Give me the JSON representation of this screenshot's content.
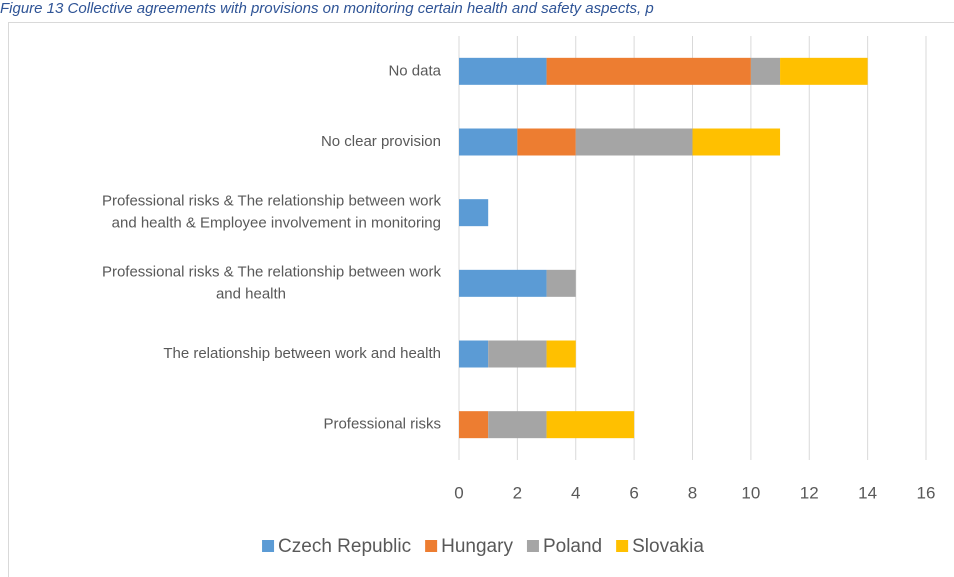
{
  "chart_data": {
    "type": "stacked_bar_horizontal",
    "title": "Figure 13 Collective agreements with provisions on monitoring certain health and safety aspects, p",
    "categories": [
      "No data",
      "No clear provision",
      "Professional risks & The relationship between work and health & Employee involvement in monitoring",
      "Professional risks & The relationship between work and health",
      "The relationship between work and health",
      "Professional risks"
    ],
    "series": [
      {
        "name": "Czech Republic",
        "color": "#5b9bd5",
        "values": [
          3,
          2,
          1,
          3,
          1,
          0
        ]
      },
      {
        "name": "Hungary",
        "color": "#ed7d31",
        "values": [
          7,
          2,
          0,
          0,
          0,
          1
        ]
      },
      {
        "name": "Poland",
        "color": "#a5a5a5",
        "values": [
          1,
          4,
          0,
          1,
          2,
          2
        ]
      },
      {
        "name": "Slovakia",
        "color": "#ffc000",
        "values": [
          3,
          3,
          0,
          0,
          1,
          3
        ]
      }
    ],
    "xlim": [
      0,
      16
    ],
    "xticks": [
      0,
      2,
      4,
      6,
      8,
      10,
      12,
      14,
      16
    ],
    "grid": true,
    "legend": "bottom"
  }
}
